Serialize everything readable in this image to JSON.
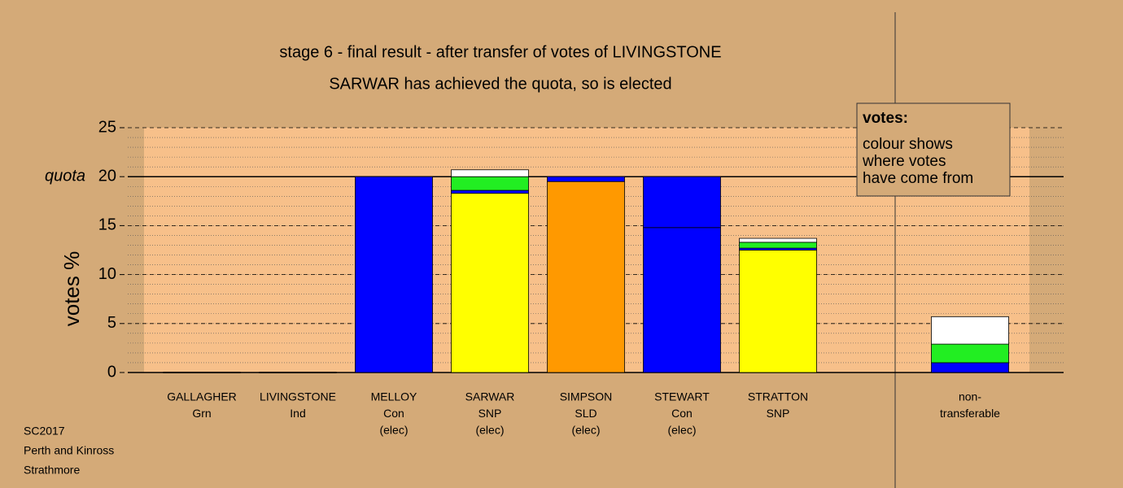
{
  "chart_data": {
    "type": "stacked_bar",
    "title": "stage 6 - final result - after transfer of votes of LIVINGSTONE",
    "subtitle": "SARWAR has achieved the quota, so is elected",
    "y_label": "votes %",
    "quota": 20,
    "quota_label": "quota",
    "ylim": [
      0,
      25
    ],
    "yticks": [
      0,
      5,
      10,
      15,
      20,
      25
    ],
    "grid": true,
    "minor_grid": true,
    "categories": [
      [
        "GALLAGHER",
        "Grn"
      ],
      [
        "LIVINGSTONE",
        "Ind"
      ],
      [
        "MELLOY",
        "Con",
        "(elec)"
      ],
      [
        "SARWAR",
        "SNP",
        "(elec)"
      ],
      [
        "SIMPSON",
        "SLD",
        "(elec)"
      ],
      [
        "STEWART",
        "Con",
        "(elec)"
      ],
      [
        "STRATTON",
        "SNP"
      ],
      null,
      [
        "non-",
        "transferable"
      ]
    ],
    "bars": [
      {
        "segments": [
          {
            "color": "#00ee00",
            "value": 0
          }
        ]
      },
      {
        "segments": [
          {
            "color": "#ffffff",
            "value": 0
          }
        ]
      },
      {
        "segments": [
          {
            "color": "#0000ff",
            "value": 20
          }
        ]
      },
      {
        "segments": [
          {
            "color": "#ffff00",
            "value": 18.3
          },
          {
            "color": "#0000ff",
            "value": 0.3
          },
          {
            "color": "#22ee22",
            "value": 1.4
          },
          {
            "color": "#ffffff",
            "value": 0.7
          }
        ]
      },
      {
        "segments": [
          {
            "color": "#ff9900",
            "value": 19.5
          },
          {
            "color": "#0000ff",
            "value": 0.5
          }
        ]
      },
      {
        "segments": [
          {
            "color": "#0000ff",
            "value": 14.8
          },
          {
            "color": "#0000ff",
            "value": 5.2
          }
        ]
      },
      {
        "segments": [
          {
            "color": "#ffff00",
            "value": 12.5
          },
          {
            "color": "#0000ff",
            "value": 0.2
          },
          {
            "color": "#22ee22",
            "value": 0.6
          },
          {
            "color": "#ffffff",
            "value": 0.4
          }
        ]
      },
      null,
      {
        "segments": [
          {
            "color": "#0000ff",
            "value": 1.0
          },
          {
            "color": "#22ee22",
            "value": 1.9
          },
          {
            "color": "#ffffff",
            "value": 2.8
          }
        ]
      }
    ],
    "legend": {
      "title": "votes:",
      "lines": [
        "colour shows",
        "where votes",
        "have come from"
      ]
    },
    "footer": [
      "SC2017",
      "Perth and Kinross",
      "Strathmore"
    ]
  }
}
